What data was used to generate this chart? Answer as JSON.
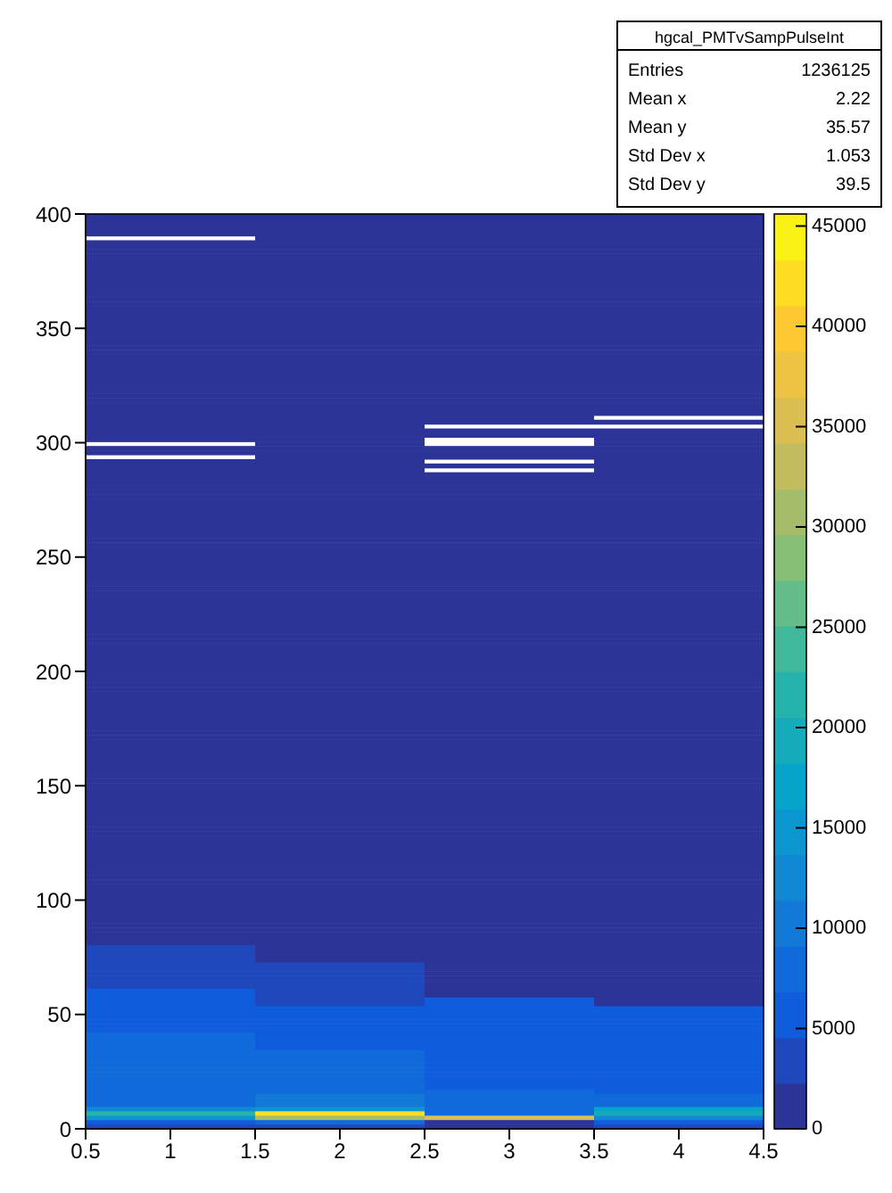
{
  "chart_data": {
    "type": "heatmap",
    "x": [
      1,
      2,
      3,
      4
    ],
    "xlim": [
      0.5,
      4.5
    ],
    "xticks": [
      0.5,
      1,
      1.5,
      2,
      2.5,
      3,
      3.5,
      4,
      4.5
    ],
    "ylim": [
      0,
      400
    ],
    "yticks": [
      0,
      50,
      100,
      150,
      200,
      250,
      300,
      350,
      400
    ],
    "clim": [
      0,
      45600
    ],
    "cticks": [
      0,
      5000,
      10000,
      15000,
      20000,
      25000,
      30000,
      35000,
      40000,
      45000
    ],
    "annotations": [
      "hgcal_PMTvSampPulseInt",
      "Entries 1236125",
      "Mean x 2.22",
      "Mean y 35.57",
      "Std Dev x 1.053",
      "Std Dev y 39.5"
    ],
    "cells": [
      [
        1000,
        1000,
        1000,
        1000
      ],
      [
        1000,
        1000,
        1000,
        1000
      ],
      [
        1000,
        1000,
        1000,
        1000
      ],
      [
        1000,
        1000,
        1000,
        1000
      ],
      [
        1000,
        1000,
        1000,
        1000
      ],
      [
        null,
        1000,
        1000,
        1000
      ],
      [
        1000,
        1000,
        1000,
        1000
      ],
      [
        1000,
        1000,
        1000,
        1000
      ],
      [
        1000,
        1000,
        1000,
        1000
      ],
      [
        1000,
        1000,
        1000,
        1000
      ],
      [
        1000,
        1000,
        1000,
        1000
      ],
      [
        1000,
        1000,
        1000,
        1000
      ],
      [
        1000,
        1000,
        1000,
        1000
      ],
      [
        1000,
        1000,
        1000,
        1000
      ],
      [
        1000,
        1000,
        1000,
        1000
      ],
      [
        1000,
        1000,
        1000,
        1000
      ],
      [
        1000,
        1000,
        1000,
        1000
      ],
      [
        1000,
        1000,
        1000,
        1000
      ],
      [
        1000,
        1000,
        1000,
        1000
      ],
      [
        1000,
        1000,
        1000,
        1000
      ],
      [
        1000,
        1000,
        1000,
        1000
      ],
      [
        1000,
        1000,
        1000,
        1000
      ],
      [
        1000,
        1000,
        1000,
        1000
      ],
      [
        1000,
        1000,
        1000,
        1000
      ],
      [
        1000,
        1000,
        1000,
        1000
      ],
      [
        1000,
        1000,
        1000,
        1000
      ],
      [
        1000,
        1000,
        1000,
        1000
      ],
      [
        1000,
        1000,
        1000,
        1000
      ],
      [
        1000,
        1000,
        1000,
        1000
      ],
      [
        1000,
        1000,
        1000,
        1000
      ],
      [
        1000,
        1000,
        1000,
        1000
      ],
      [
        1000,
        1000,
        1000,
        1000
      ],
      [
        1000,
        1000,
        1000,
        1000
      ],
      [
        1000,
        1000,
        1000,
        1000
      ],
      [
        1000,
        1000,
        1000,
        1000
      ],
      [
        1000,
        1000,
        1000,
        1000
      ],
      [
        1000,
        1000,
        1000,
        1000
      ],
      [
        1000,
        1000,
        1000,
        1000
      ],
      [
        1000,
        1000,
        1000,
        1000
      ],
      [
        1000,
        1000,
        1000,
        1000
      ],
      [
        1000,
        1000,
        1000,
        1000
      ],
      [
        1000,
        1000,
        1000,
        1000
      ],
      [
        1000,
        1000,
        1000,
        1000
      ],
      [
        1000,
        1000,
        1000,
        1000
      ],
      [
        1000,
        1000,
        1000,
        1000
      ],
      [
        1000,
        1000,
        1000,
        1000
      ],
      [
        1000,
        1000,
        1000,
        null
      ],
      [
        1000,
        1000,
        1000,
        1000
      ],
      [
        1000,
        1000,
        null,
        null
      ],
      [
        1000,
        1000,
        1000,
        1000
      ],
      [
        1000,
        1000,
        1000,
        1000
      ],
      [
        1000,
        1000,
        null,
        1000
      ],
      [
        null,
        1000,
        null,
        1000
      ],
      [
        1000,
        1000,
        1000,
        1000
      ],
      [
        1000,
        1000,
        1000,
        1000
      ],
      [
        null,
        1000,
        1000,
        1000
      ],
      [
        1000,
        1000,
        null,
        1000
      ],
      [
        1000,
        1000,
        1000,
        1000
      ],
      [
        1000,
        1000,
        null,
        1000
      ],
      [
        1000,
        1000,
        1000,
        1000
      ],
      [
        1000,
        1000,
        1000,
        1000
      ],
      [
        1000,
        1000,
        1000,
        1000
      ],
      [
        1000,
        1000,
        1000,
        1000
      ],
      [
        1000,
        1000,
        1000,
        1000
      ],
      [
        1000,
        1000,
        1000,
        1000
      ],
      [
        1000,
        1000,
        1000,
        1000
      ],
      [
        1000,
        1000,
        1000,
        1000
      ],
      [
        1000,
        1000,
        1000,
        1000
      ],
      [
        1000,
        1000,
        1000,
        1000
      ],
      [
        1000,
        1000,
        1000,
        1000
      ],
      [
        1000,
        1000,
        1000,
        1000
      ],
      [
        1000,
        1000,
        1000,
        1000
      ],
      [
        1000,
        1000,
        1000,
        1000
      ],
      [
        1000,
        1000,
        1000,
        1000
      ],
      [
        1000,
        1000,
        1000,
        1000
      ],
      [
        1000,
        1000,
        1000,
        1000
      ],
      [
        1000,
        1000,
        1000,
        1000
      ],
      [
        1000,
        1000,
        1000,
        1000
      ],
      [
        1000,
        1000,
        1000,
        1000
      ],
      [
        1000,
        1000,
        1000,
        1000
      ],
      [
        1000,
        1000,
        1000,
        1000
      ],
      [
        1000,
        1000,
        1000,
        1000
      ],
      [
        1000,
        1000,
        1000,
        1000
      ],
      [
        1000,
        1000,
        1000,
        1000
      ],
      [
        1000,
        1000,
        1000,
        1000
      ],
      [
        1000,
        1000,
        1000,
        1000
      ],
      [
        1000,
        1000,
        1000,
        1000
      ],
      [
        1000,
        1000,
        1000,
        1000
      ],
      [
        1000,
        1000,
        1000,
        1000
      ],
      [
        1000,
        1000,
        1000,
        1000
      ],
      [
        1000,
        1000,
        1000,
        1000
      ],
      [
        1000,
        1000,
        1000,
        1000
      ],
      [
        1000,
        1000,
        1000,
        1000
      ],
      [
        1000,
        1000,
        1000,
        1000
      ],
      [
        1000,
        1000,
        1000,
        1000
      ],
      [
        1000,
        1000,
        1000,
        1000
      ],
      [
        1000,
        1000,
        1000,
        1000
      ],
      [
        1000,
        1000,
        1000,
        1000
      ],
      [
        1000,
        1000,
        1000,
        1000
      ],
      [
        1000,
        1000,
        1000,
        1000
      ],
      [
        1000,
        1000,
        1000,
        1000
      ],
      [
        1000,
        1000,
        1000,
        1000
      ],
      [
        1000,
        1000,
        1000,
        1000
      ],
      [
        1000,
        1000,
        1000,
        1000
      ],
      [
        1000,
        1000,
        1000,
        1000
      ],
      [
        1000,
        1000,
        1000,
        1000
      ],
      [
        1000,
        1000,
        1000,
        1000
      ],
      [
        1000,
        1000,
        1000,
        1000
      ],
      [
        1000,
        1000,
        1000,
        1000
      ],
      [
        1000,
        1000,
        1000,
        1000
      ],
      [
        1000,
        1000,
        1000,
        1000
      ],
      [
        1000,
        1000,
        1000,
        1000
      ],
      [
        1000,
        1000,
        1000,
        1000
      ],
      [
        1000,
        1000,
        1000,
        1000
      ],
      [
        1000,
        1000,
        1000,
        1000
      ],
      [
        1000,
        1000,
        1000,
        1000
      ],
      [
        1000,
        1000,
        1000,
        1000
      ],
      [
        1000,
        1000,
        1000,
        1000
      ],
      [
        1000,
        1000,
        1000,
        1000
      ],
      [
        1000,
        1000,
        1000,
        1000
      ],
      [
        1000,
        1000,
        1000,
        1000
      ],
      [
        1000,
        1000,
        1000,
        1000
      ],
      [
        1000,
        1000,
        1000,
        1000
      ],
      [
        1000,
        1000,
        1000,
        1000
      ],
      [
        1000,
        1000,
        1000,
        1000
      ],
      [
        1000,
        1000,
        1000,
        1000
      ],
      [
        1000,
        1000,
        1000,
        1000
      ],
      [
        1000,
        1000,
        1000,
        1000
      ],
      [
        1000,
        1000,
        1000,
        1000
      ],
      [
        1000,
        1000,
        1000,
        1000
      ],
      [
        1000,
        1000,
        1000,
        1000
      ],
      [
        1000,
        1000,
        1000,
        1000
      ],
      [
        1000,
        1000,
        1000,
        1000
      ],
      [
        1000,
        1000,
        1000,
        1000
      ],
      [
        1000,
        1000,
        1000,
        1000
      ],
      [
        1000,
        1000,
        1000,
        1000
      ],
      [
        1000,
        1000,
        1000,
        1000
      ],
      [
        1000,
        1000,
        1000,
        1000
      ],
      [
        1000,
        1000,
        1000,
        1000
      ],
      [
        1000,
        1000,
        1000,
        1000
      ],
      [
        1000,
        1000,
        1000,
        1000
      ],
      [
        1000,
        1000,
        1000,
        1000
      ],
      [
        1000,
        1000,
        1000,
        1000
      ],
      [
        1000,
        1000,
        1000,
        1000
      ],
      [
        1000,
        1000,
        1000,
        1000
      ],
      [
        1000,
        1000,
        1000,
        1000
      ],
      [
        1000,
        1000,
        1000,
        1000
      ],
      [
        1000,
        1000,
        1000,
        1000
      ],
      [
        1000,
        1000,
        1000,
        1000
      ],
      [
        1000,
        1000,
        1000,
        1000
      ],
      [
        1000,
        1000,
        1000,
        1000
      ],
      [
        1000,
        1000,
        1000,
        1000
      ],
      [
        1000,
        1000,
        1000,
        1000
      ],
      [
        1000,
        1000,
        1000,
        1000
      ],
      [
        1000,
        1000,
        1000,
        1000
      ],
      [
        1000,
        1000,
        1000,
        1000
      ],
      [
        1000,
        1000,
        1000,
        1000
      ],
      [
        1000,
        1000,
        1000,
        1000
      ],
      [
        1000,
        1000,
        1000,
        1000
      ],
      [
        1000,
        1000,
        1000,
        1000
      ],
      [
        1000,
        1000,
        1000,
        1000
      ],
      [
        1000,
        1000,
        1000,
        1000
      ],
      [
        1000,
        1000,
        1000,
        1000
      ],
      [
        1000,
        1000,
        1000,
        1000
      ],
      [
        1000,
        1000,
        1000,
        1000
      ],
      [
        1000,
        1000,
        1000,
        1000
      ],
      [
        1000,
        1000,
        1000,
        1000
      ],
      [
        4000,
        1000,
        1000,
        1000
      ],
      [
        4000,
        1000,
        1000,
        1000
      ],
      [
        4000,
        1000,
        1000,
        1000
      ],
      [
        4000,
        1000,
        1000,
        1000
      ],
      [
        4000,
        4000,
        1000,
        1000
      ],
      [
        4000,
        4000,
        1000,
        1000
      ],
      [
        4000,
        4000,
        1000,
        1000
      ],
      [
        4000,
        4000,
        1000,
        1000
      ],
      [
        4000,
        4000,
        1000,
        1000
      ],
      [
        4000,
        4000,
        1000,
        1000
      ],
      [
        6000,
        4000,
        1000,
        1000
      ],
      [
        6000,
        4000,
        1000,
        1000
      ],
      [
        6000,
        4000,
        5000,
        1000
      ],
      [
        6000,
        4000,
        5000,
        1000
      ],
      [
        6000,
        6000,
        5000,
        5000
      ],
      [
        6000,
        6000,
        5000,
        5000
      ],
      [
        6000,
        6000,
        5000,
        5000
      ],
      [
        6000,
        6000,
        5000,
        5000
      ],
      [
        6000,
        6000,
        5000,
        5000
      ],
      [
        6000,
        6000,
        5000,
        5000
      ],
      [
        8500,
        6000,
        5000,
        5000
      ],
      [
        8500,
        6000,
        5000,
        5000
      ],
      [
        8500,
        6000,
        5000,
        5000
      ],
      [
        8500,
        6000,
        5000,
        5000
      ],
      [
        8500,
        8500,
        5000,
        5000
      ],
      [
        8500,
        8500,
        5000,
        5000
      ],
      [
        8500,
        8500,
        5000,
        5000
      ],
      [
        8500,
        8500,
        5000,
        5000
      ],
      [
        8500,
        8500,
        5000,
        5000
      ],
      [
        8500,
        8500,
        5000,
        5000
      ],
      [
        8500,
        8500,
        5000,
        5000
      ],
      [
        8500,
        8500,
        5000,
        5000
      ],
      [
        8500,
        8500,
        5000,
        5000
      ],
      [
        8500,
        8500,
        7000,
        5000
      ],
      [
        8500,
        11000,
        7000,
        9000
      ],
      [
        8500,
        11000,
        7000,
        9000
      ],
      [
        8500,
        11000,
        7000,
        9000
      ],
      [
        12000,
        14000,
        7000,
        18000
      ],
      [
        22000,
        42000,
        7000,
        20000
      ],
      [
        14000,
        30000,
        36000,
        12000
      ],
      [
        6000,
        7000,
        2000,
        6000
      ],
      [
        3000,
        3000,
        2000,
        3000
      ]
    ]
  }
}
